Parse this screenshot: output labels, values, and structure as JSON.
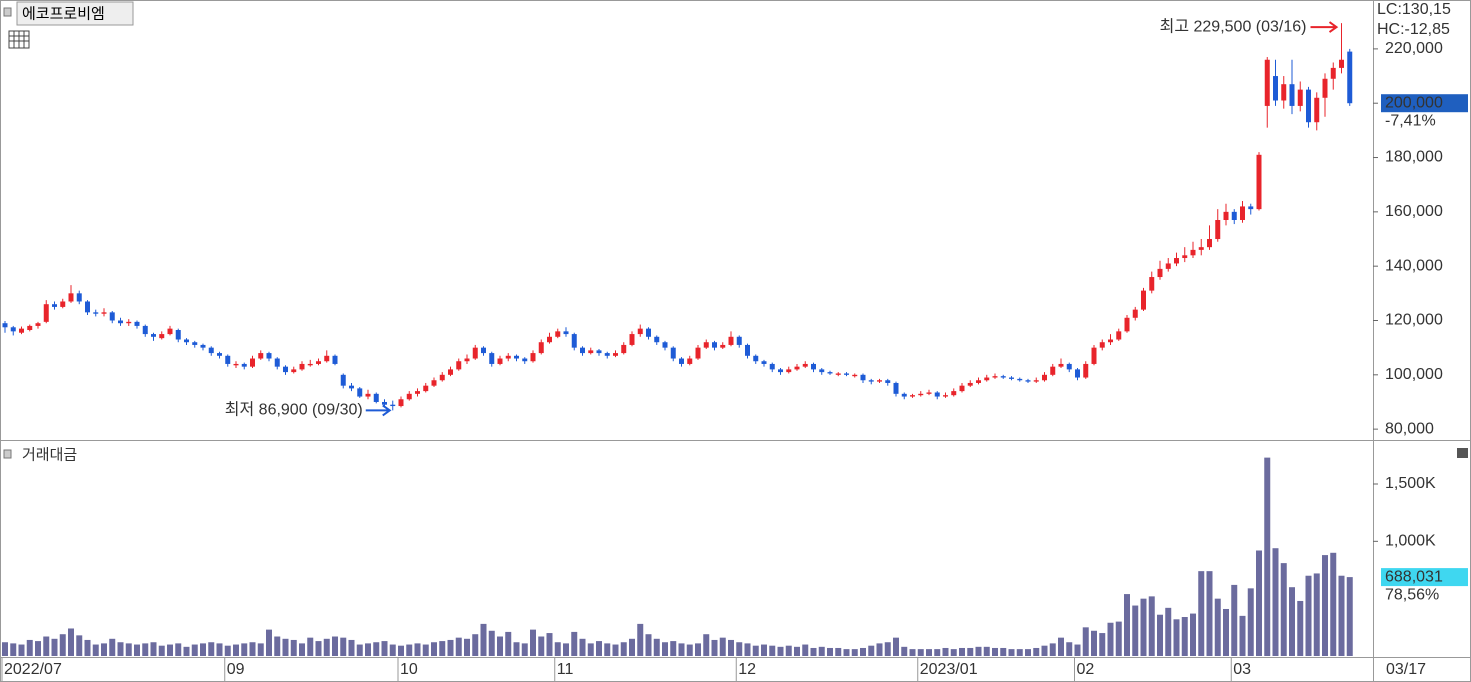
{
  "chart_data": {
    "type": "candlestick",
    "title": "에코프로비엠",
    "indicator_lc": "LC:130,15",
    "indicator_hc": "HC:-12,85",
    "price_label": "200,000",
    "price_change": "-7,41%",
    "high_label": "최고 229,500 (03/16)",
    "low_label": "최저 86,900 (09/30)",
    "last_date": "03/17",
    "up_color": "#e8242b",
    "down_color": "#1e5bd6",
    "ylim": [
      76000,
      238000
    ],
    "yticks": [
      {
        "value": 80000,
        "label": "80,000"
      },
      {
        "value": 100000,
        "label": "100,000"
      },
      {
        "value": 120000,
        "label": "120,000"
      },
      {
        "value": 140000,
        "label": "140,000"
      },
      {
        "value": 160000,
        "label": "160,000"
      },
      {
        "value": 180000,
        "label": "180,000"
      },
      {
        "value": 200000,
        "label": "200,000"
      },
      {
        "value": 220000,
        "label": "220,000"
      }
    ],
    "categories": [
      "2022/07",
      null,
      null,
      null,
      null,
      null,
      null,
      null,
      null,
      null,
      null,
      null,
      null,
      null,
      null,
      null,
      null,
      null,
      null,
      null,
      null,
      null,
      null,
      null,
      null,
      null,
      null,
      "09",
      null,
      null,
      null,
      null,
      null,
      null,
      null,
      null,
      null,
      null,
      null,
      null,
      null,
      null,
      null,
      null,
      null,
      null,
      null,
      null,
      "10",
      null,
      null,
      null,
      null,
      null,
      null,
      null,
      null,
      null,
      null,
      null,
      null,
      null,
      null,
      null,
      null,
      null,
      null,
      "11",
      null,
      null,
      null,
      null,
      null,
      null,
      null,
      null,
      null,
      null,
      null,
      null,
      null,
      null,
      null,
      null,
      null,
      null,
      null,
      null,
      null,
      "12",
      null,
      null,
      null,
      null,
      null,
      null,
      null,
      null,
      null,
      null,
      null,
      null,
      null,
      null,
      null,
      null,
      null,
      null,
      null,
      null,
      null,
      "2023/01",
      null,
      null,
      null,
      null,
      null,
      null,
      null,
      null,
      null,
      null,
      null,
      null,
      null,
      null,
      null,
      null,
      null,
      null,
      "02",
      null,
      null,
      null,
      null,
      null,
      null,
      null,
      null,
      null,
      null,
      null,
      null,
      null,
      null,
      null,
      null,
      null,
      null,
      "03",
      null,
      null,
      null,
      null,
      null,
      null,
      null,
      null,
      null,
      null,
      null,
      null
    ],
    "ohlc": [
      [
        119000,
        119800,
        115500,
        117500
      ],
      [
        117500,
        118000,
        114500,
        116000
      ],
      [
        115500,
        117800,
        115000,
        117000
      ],
      [
        116500,
        118500,
        116000,
        118000
      ],
      [
        118000,
        119500,
        117000,
        119000
      ],
      [
        119500,
        127500,
        119000,
        126000
      ],
      [
        126000,
        127000,
        124000,
        125000
      ],
      [
        125000,
        128000,
        124500,
        127000
      ],
      [
        127000,
        133000,
        126500,
        130000
      ],
      [
        130000,
        131000,
        126000,
        127000
      ],
      [
        127000,
        127500,
        122000,
        123000
      ],
      [
        123000,
        124000,
        121500,
        122500
      ],
      [
        122500,
        124500,
        121500,
        123000
      ],
      [
        123000,
        123500,
        119000,
        120000
      ],
      [
        120000,
        121000,
        118000,
        119000
      ],
      [
        119000,
        120500,
        118000,
        119500
      ],
      [
        119500,
        120000,
        117000,
        118000
      ],
      [
        118000,
        118500,
        114000,
        115000
      ],
      [
        115000,
        115500,
        112500,
        114000
      ],
      [
        113500,
        116000,
        113000,
        115000
      ],
      [
        115000,
        118000,
        114500,
        117000
      ],
      [
        116500,
        117000,
        112000,
        113000
      ],
      [
        113000,
        113500,
        111000,
        112000
      ],
      [
        112000,
        112500,
        110000,
        111000
      ],
      [
        111000,
        111500,
        109000,
        110000
      ],
      [
        110000,
        110500,
        107000,
        108000
      ],
      [
        108000,
        108500,
        106000,
        107000
      ],
      [
        107000,
        107500,
        103000,
        104000
      ],
      [
        103500,
        105000,
        102500,
        104000
      ],
      [
        104000,
        104500,
        102000,
        103000
      ],
      [
        103000,
        107000,
        102500,
        106000
      ],
      [
        106000,
        109000,
        105500,
        108000
      ],
      [
        108000,
        108500,
        105000,
        106000
      ],
      [
        106000,
        106500,
        102000,
        103000
      ],
      [
        103000,
        103500,
        100000,
        101000
      ],
      [
        101000,
        103000,
        100500,
        102000
      ],
      [
        102000,
        105000,
        101500,
        104000
      ],
      [
        103500,
        105500,
        103000,
        104000
      ],
      [
        104000,
        106000,
        103500,
        105000
      ],
      [
        105000,
        109000,
        104500,
        107000
      ],
      [
        107000,
        107500,
        103500,
        104000
      ],
      [
        100000,
        100500,
        95000,
        96000
      ],
      [
        96000,
        97000,
        94000,
        95000
      ],
      [
        95000,
        95500,
        91500,
        92000
      ],
      [
        92000,
        94500,
        91000,
        93000
      ],
      [
        93000,
        93500,
        89500,
        90000
      ],
      [
        90000,
        91000,
        88000,
        89000
      ],
      [
        89000,
        90500,
        86900,
        88500
      ],
      [
        88500,
        92000,
        88000,
        91000
      ],
      [
        91000,
        94000,
        90500,
        93000
      ],
      [
        93000,
        95000,
        92000,
        94000
      ],
      [
        94000,
        97000,
        93500,
        96000
      ],
      [
        96000,
        99000,
        95500,
        98000
      ],
      [
        98000,
        101000,
        97500,
        100000
      ],
      [
        100000,
        103000,
        99500,
        102000
      ],
      [
        102000,
        106000,
        101500,
        105000
      ],
      [
        105000,
        107500,
        104000,
        106000
      ],
      [
        106000,
        111000,
        105500,
        110000
      ],
      [
        110000,
        110500,
        107000,
        108000
      ],
      [
        108000,
        108500,
        103000,
        104000
      ],
      [
        104000,
        107000,
        103500,
        106000
      ],
      [
        106000,
        108000,
        105000,
        107000
      ],
      [
        107000,
        107500,
        105000,
        106000
      ],
      [
        106000,
        106500,
        104000,
        105000
      ],
      [
        105000,
        109000,
        104500,
        108000
      ],
      [
        108000,
        113000,
        107500,
        112000
      ],
      [
        112000,
        115500,
        111500,
        114000
      ],
      [
        114000,
        117000,
        113500,
        116000
      ],
      [
        116000,
        117500,
        114000,
        115000
      ],
      [
        115000,
        115500,
        109000,
        110000
      ],
      [
        110000,
        110500,
        107000,
        108000
      ],
      [
        108000,
        110000,
        107500,
        109000
      ],
      [
        109000,
        109500,
        107000,
        108000
      ],
      [
        108000,
        108500,
        106000,
        107000
      ],
      [
        107000,
        109000,
        106500,
        108000
      ],
      [
        108000,
        112000,
        107500,
        111000
      ],
      [
        111000,
        116000,
        110500,
        115000
      ],
      [
        115000,
        118500,
        114000,
        117000
      ],
      [
        117000,
        117500,
        113000,
        114000
      ],
      [
        114000,
        114500,
        111000,
        112000
      ],
      [
        112000,
        112500,
        109000,
        110000
      ],
      [
        110000,
        110500,
        105000,
        106000
      ],
      [
        106000,
        106500,
        103000,
        104000
      ],
      [
        104000,
        107000,
        103500,
        106000
      ],
      [
        106000,
        111000,
        105500,
        110000
      ],
      [
        110000,
        113000,
        109500,
        112000
      ],
      [
        112000,
        112500,
        109000,
        110000
      ],
      [
        110000,
        112000,
        109500,
        111000
      ],
      [
        111000,
        116000,
        110500,
        114000
      ],
      [
        114000,
        114500,
        110000,
        111000
      ],
      [
        111000,
        111500,
        106000,
        107000
      ],
      [
        107000,
        107500,
        104000,
        105000
      ],
      [
        105000,
        105500,
        103000,
        104000
      ],
      [
        104000,
        104500,
        101000,
        102000
      ],
      [
        102000,
        102500,
        100000,
        101000
      ],
      [
        101000,
        103000,
        100500,
        102000
      ],
      [
        102000,
        104000,
        101500,
        103000
      ],
      [
        103000,
        105000,
        102500,
        104000
      ],
      [
        104000,
        104500,
        101000,
        102000
      ],
      [
        102000,
        102500,
        100000,
        101000
      ],
      [
        101000,
        101500,
        100000,
        100500
      ],
      [
        100000,
        101000,
        99500,
        100500
      ],
      [
        100500,
        101000,
        99500,
        100000
      ],
      [
        99500,
        100500,
        99000,
        100000
      ],
      [
        100000,
        100500,
        97000,
        98000
      ],
      [
        98000,
        98500,
        96500,
        97500
      ],
      [
        97500,
        98500,
        97000,
        98000
      ],
      [
        98000,
        98500,
        96000,
        97000
      ],
      [
        97000,
        97500,
        92000,
        93000
      ],
      [
        93000,
        93500,
        91000,
        92000
      ],
      [
        92000,
        93000,
        91500,
        92500
      ],
      [
        92500,
        94000,
        92000,
        93000
      ],
      [
        93000,
        94500,
        92500,
        93500
      ],
      [
        93500,
        94000,
        91000,
        92000
      ],
      [
        92000,
        93500,
        91500,
        92500
      ],
      [
        92500,
        95000,
        92000,
        94000
      ],
      [
        94000,
        97000,
        93500,
        96000
      ],
      [
        96000,
        98000,
        95500,
        97000
      ],
      [
        97000,
        99000,
        96500,
        98000
      ],
      [
        98000,
        100000,
        97500,
        99000
      ],
      [
        99000,
        100500,
        98500,
        99500
      ],
      [
        99500,
        100000,
        98500,
        99000
      ],
      [
        99000,
        99500,
        98000,
        98500
      ],
      [
        98500,
        99000,
        97500,
        98000
      ],
      [
        98000,
        98500,
        97000,
        97500
      ],
      [
        97500,
        99000,
        97000,
        98000
      ],
      [
        98000,
        101000,
        97500,
        100000
      ],
      [
        100000,
        104000,
        99500,
        103000
      ],
      [
        103000,
        106000,
        102500,
        104000
      ],
      [
        104000,
        104500,
        101000,
        102000
      ],
      [
        102000,
        102500,
        98000,
        99000
      ],
      [
        99000,
        105000,
        98500,
        104000
      ],
      [
        104000,
        111000,
        103500,
        110000
      ],
      [
        110000,
        113000,
        109000,
        112000
      ],
      [
        112000,
        115000,
        111000,
        113000
      ],
      [
        113000,
        117000,
        112500,
        116000
      ],
      [
        116000,
        122000,
        115500,
        121000
      ],
      [
        121000,
        125000,
        120000,
        124000
      ],
      [
        124000,
        132000,
        123500,
        131000
      ],
      [
        131000,
        138000,
        130000,
        136000
      ],
      [
        136000,
        142000,
        135000,
        139000
      ],
      [
        139000,
        143000,
        138000,
        141000
      ],
      [
        141000,
        145000,
        140000,
        143000
      ],
      [
        143000,
        147000,
        141500,
        144000
      ],
      [
        144000,
        149000,
        143000,
        146000
      ],
      [
        146000,
        150000,
        144000,
        147000
      ],
      [
        147000,
        155000,
        146000,
        150000
      ],
      [
        150000,
        161000,
        149000,
        157000
      ],
      [
        157000,
        163000,
        155000,
        160000
      ],
      [
        160000,
        161000,
        155500,
        157000
      ],
      [
        157000,
        164000,
        156000,
        162000
      ],
      [
        162000,
        163000,
        159000,
        161000
      ],
      [
        161000,
        182000,
        160500,
        181000
      ],
      [
        199000,
        217000,
        191000,
        216000
      ],
      [
        210000,
        216000,
        199000,
        201000
      ],
      [
        201000,
        210000,
        198000,
        207000
      ],
      [
        207000,
        216000,
        196000,
        199000
      ],
      [
        199000,
        208000,
        197000,
        205000
      ],
      [
        205000,
        206000,
        191000,
        193000
      ],
      [
        193000,
        204000,
        190000,
        202000
      ],
      [
        202000,
        211000,
        195000,
        209000
      ],
      [
        209000,
        215000,
        205000,
        213000
      ],
      [
        213000,
        229500,
        211000,
        216000
      ],
      [
        219000,
        220000,
        199000,
        200000
      ]
    ],
    "volume": {
      "type": "bar",
      "title": "거래대금",
      "color": "#6b6b9e",
      "value_label": "688,031",
      "change_label": "78,56%",
      "ylim": [
        0,
        1840000
      ],
      "yticks": [
        {
          "value": 1000000,
          "label": "1,000K"
        },
        {
          "value": 1500000,
          "label": "1,500K"
        }
      ],
      "values": [
        120000,
        110000,
        100000,
        140000,
        130000,
        170000,
        150000,
        190000,
        240000,
        180000,
        140000,
        100000,
        110000,
        150000,
        120000,
        110000,
        100000,
        110000,
        120000,
        90000,
        100000,
        110000,
        80000,
        100000,
        110000,
        120000,
        110000,
        90000,
        100000,
        110000,
        120000,
        110000,
        230000,
        170000,
        150000,
        140000,
        110000,
        160000,
        130000,
        150000,
        170000,
        160000,
        140000,
        100000,
        110000,
        120000,
        130000,
        100000,
        90000,
        100000,
        110000,
        100000,
        120000,
        130000,
        140000,
        160000,
        150000,
        190000,
        280000,
        220000,
        170000,
        210000,
        120000,
        110000,
        230000,
        170000,
        200000,
        120000,
        110000,
        210000,
        150000,
        110000,
        130000,
        110000,
        100000,
        120000,
        150000,
        280000,
        190000,
        150000,
        120000,
        130000,
        110000,
        100000,
        110000,
        190000,
        140000,
        160000,
        140000,
        120000,
        110000,
        90000,
        100000,
        90000,
        80000,
        90000,
        80000,
        100000,
        70000,
        80000,
        70000,
        70000,
        60000,
        60000,
        70000,
        90000,
        110000,
        120000,
        160000,
        80000,
        60000,
        60000,
        60000,
        60000,
        70000,
        60000,
        70000,
        70000,
        80000,
        80000,
        70000,
        70000,
        60000,
        60000,
        60000,
        70000,
        90000,
        110000,
        160000,
        120000,
        100000,
        250000,
        220000,
        200000,
        290000,
        300000,
        540000,
        440000,
        500000,
        520000,
        360000,
        420000,
        320000,
        340000,
        370000,
        740000,
        740000,
        500000,
        410000,
        620000,
        350000,
        590000,
        920000,
        1730000,
        940000,
        810000,
        600000,
        480000,
        700000,
        720000,
        880000,
        900000,
        700000,
        688031
      ]
    }
  }
}
